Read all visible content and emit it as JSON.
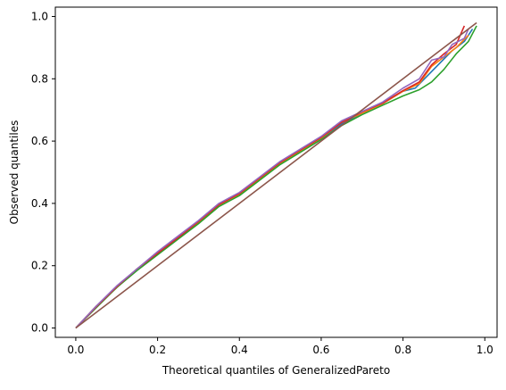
{
  "chart_data": {
    "type": "line",
    "title": "",
    "xlabel": "Theoretical quantiles of GeneralizedPareto",
    "ylabel": "Observed quantiles",
    "xlim": [
      -0.05,
      1.03
    ],
    "ylim": [
      -0.03,
      1.03
    ],
    "grid": false,
    "legend": "none",
    "x_ticks": [
      0.0,
      0.2,
      0.4,
      0.6,
      0.8,
      1.0
    ],
    "x_tick_labels": [
      "0.0",
      "0.2",
      "0.4",
      "0.6",
      "0.8",
      "1.0"
    ],
    "y_ticks": [
      0.0,
      0.2,
      0.4,
      0.6,
      0.8,
      1.0
    ],
    "y_tick_labels": [
      "0.0",
      "0.2",
      "0.4",
      "0.6",
      "0.8",
      "1.0"
    ],
    "series": [
      {
        "color": "#1f77b4",
        "points": [
          [
            0.0,
            0.0
          ],
          [
            0.05,
            0.07
          ],
          [
            0.1,
            0.13
          ],
          [
            0.15,
            0.19
          ],
          [
            0.2,
            0.24
          ],
          [
            0.25,
            0.29
          ],
          [
            0.3,
            0.34
          ],
          [
            0.35,
            0.395
          ],
          [
            0.4,
            0.43
          ],
          [
            0.45,
            0.48
          ],
          [
            0.5,
            0.53
          ],
          [
            0.55,
            0.57
          ],
          [
            0.6,
            0.61
          ],
          [
            0.65,
            0.655
          ],
          [
            0.7,
            0.69
          ],
          [
            0.75,
            0.72
          ],
          [
            0.8,
            0.76
          ],
          [
            0.83,
            0.77
          ],
          [
            0.86,
            0.81
          ],
          [
            0.89,
            0.85
          ],
          [
            0.92,
            0.89
          ],
          [
            0.95,
            0.92
          ],
          [
            0.97,
            0.96
          ]
        ]
      },
      {
        "color": "#ff7f0e",
        "points": [
          [
            0.0,
            0.0
          ],
          [
            0.05,
            0.07
          ],
          [
            0.1,
            0.13
          ],
          [
            0.15,
            0.19
          ],
          [
            0.2,
            0.24
          ],
          [
            0.25,
            0.29
          ],
          [
            0.3,
            0.34
          ],
          [
            0.35,
            0.395
          ],
          [
            0.4,
            0.43
          ],
          [
            0.45,
            0.48
          ],
          [
            0.5,
            0.53
          ],
          [
            0.55,
            0.57
          ],
          [
            0.6,
            0.61
          ],
          [
            0.65,
            0.66
          ],
          [
            0.7,
            0.69
          ],
          [
            0.75,
            0.72
          ],
          [
            0.8,
            0.76
          ],
          [
            0.84,
            0.785
          ],
          [
            0.87,
            0.84
          ],
          [
            0.9,
            0.87
          ],
          [
            0.93,
            0.9
          ],
          [
            0.96,
            0.94
          ]
        ]
      },
      {
        "color": "#2ca02c",
        "points": [
          [
            0.0,
            0.0
          ],
          [
            0.05,
            0.065
          ],
          [
            0.1,
            0.13
          ],
          [
            0.15,
            0.185
          ],
          [
            0.2,
            0.235
          ],
          [
            0.25,
            0.285
          ],
          [
            0.3,
            0.335
          ],
          [
            0.35,
            0.39
          ],
          [
            0.4,
            0.425
          ],
          [
            0.45,
            0.475
          ],
          [
            0.5,
            0.525
          ],
          [
            0.55,
            0.565
          ],
          [
            0.6,
            0.605
          ],
          [
            0.65,
            0.65
          ],
          [
            0.7,
            0.685
          ],
          [
            0.75,
            0.715
          ],
          [
            0.8,
            0.745
          ],
          [
            0.84,
            0.765
          ],
          [
            0.87,
            0.79
          ],
          [
            0.9,
            0.83
          ],
          [
            0.93,
            0.88
          ],
          [
            0.96,
            0.92
          ],
          [
            0.98,
            0.97
          ]
        ]
      },
      {
        "color": "#d62728",
        "points": [
          [
            0.0,
            0.0
          ],
          [
            0.05,
            0.068
          ],
          [
            0.1,
            0.132
          ],
          [
            0.15,
            0.19
          ],
          [
            0.2,
            0.24
          ],
          [
            0.25,
            0.29
          ],
          [
            0.3,
            0.342
          ],
          [
            0.35,
            0.396
          ],
          [
            0.4,
            0.432
          ],
          [
            0.45,
            0.482
          ],
          [
            0.5,
            0.532
          ],
          [
            0.55,
            0.572
          ],
          [
            0.6,
            0.612
          ],
          [
            0.65,
            0.66
          ],
          [
            0.7,
            0.694
          ],
          [
            0.75,
            0.722
          ],
          [
            0.8,
            0.762
          ],
          [
            0.84,
            0.79
          ],
          [
            0.87,
            0.845
          ],
          [
            0.9,
            0.88
          ],
          [
            0.93,
            0.91
          ],
          [
            0.95,
            0.97
          ]
        ]
      },
      {
        "color": "#9467bd",
        "points": [
          [
            0.0,
            0.0
          ],
          [
            0.05,
            0.07
          ],
          [
            0.1,
            0.135
          ],
          [
            0.15,
            0.19
          ],
          [
            0.2,
            0.245
          ],
          [
            0.25,
            0.295
          ],
          [
            0.3,
            0.345
          ],
          [
            0.35,
            0.4
          ],
          [
            0.4,
            0.435
          ],
          [
            0.45,
            0.485
          ],
          [
            0.5,
            0.535
          ],
          [
            0.55,
            0.575
          ],
          [
            0.6,
            0.615
          ],
          [
            0.65,
            0.665
          ],
          [
            0.7,
            0.695
          ],
          [
            0.75,
            0.725
          ],
          [
            0.8,
            0.77
          ],
          [
            0.84,
            0.8
          ],
          [
            0.87,
            0.86
          ],
          [
            0.9,
            0.87
          ],
          [
            0.92,
            0.91
          ],
          [
            0.95,
            0.93
          ],
          [
            0.96,
            0.96
          ]
        ]
      },
      {
        "color": "#8c564b",
        "points": [
          [
            0.0,
            0.0
          ],
          [
            0.98,
            0.98
          ]
        ]
      }
    ]
  }
}
